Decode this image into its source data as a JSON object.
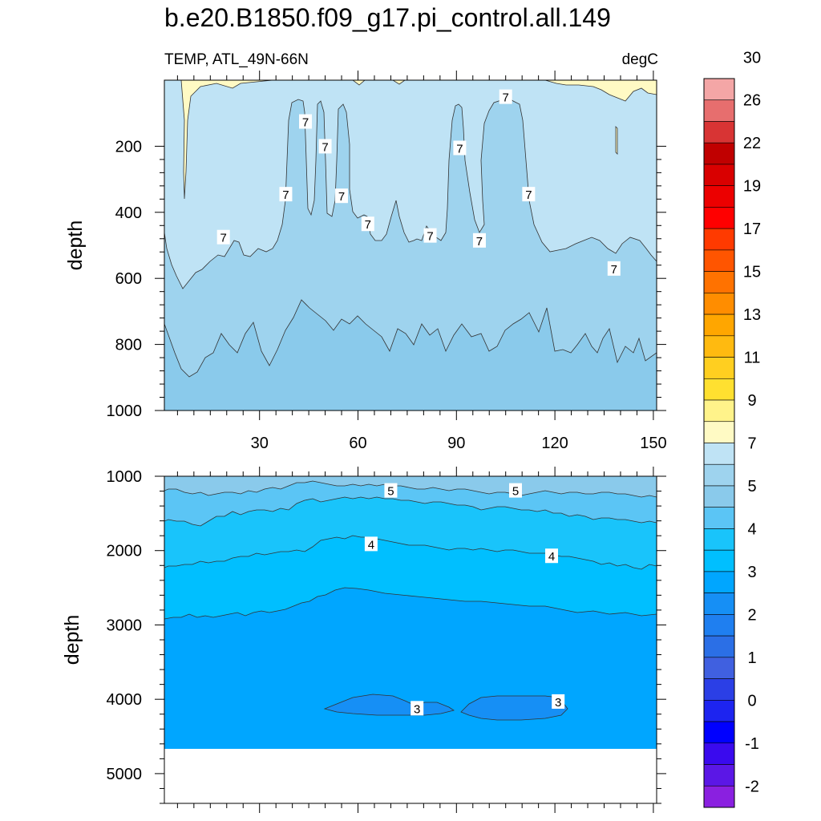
{
  "title": "b.e20.B1850.f09_g17.pi_control.all.149",
  "subtitle_left": "TEMP, ATL_49N-66N",
  "subtitle_right": "degC",
  "chart_data": [
    {
      "type": "contour",
      "name": "upper-panel",
      "xlabel": "",
      "ylabel": "depth",
      "xlim": [
        1,
        151
      ],
      "ylim": [
        1000,
        0
      ],
      "xticks": [
        30,
        60,
        90,
        120,
        150
      ],
      "yticks": [
        200,
        400,
        600,
        800,
        1000
      ],
      "contour_labels": [
        {
          "text": "7",
          "x": 44,
          "y": 125
        },
        {
          "text": "7",
          "x": 50,
          "y": 200
        },
        {
          "text": "7",
          "x": 38,
          "y": 345
        },
        {
          "text": "7",
          "x": 55,
          "y": 350
        },
        {
          "text": "7",
          "x": 63,
          "y": 435
        },
        {
          "text": "7",
          "x": 19,
          "y": 475
        },
        {
          "text": "7",
          "x": 82,
          "y": 470
        },
        {
          "text": "7",
          "x": 97,
          "y": 485
        },
        {
          "text": "7",
          "x": 91,
          "y": 205
        },
        {
          "text": "7",
          "x": 105,
          "y": 50
        },
        {
          "text": "7",
          "x": 112,
          "y": 345
        },
        {
          "text": "7",
          "x": 138,
          "y": 570
        }
      ]
    },
    {
      "type": "contour",
      "name": "lower-panel",
      "xlabel": "",
      "ylabel": "depth",
      "xlim": [
        1,
        151
      ],
      "ylim": [
        5400,
        1000
      ],
      "yticks": [
        1000,
        2000,
        3000,
        4000,
        5000
      ],
      "bottom_depth": 4600,
      "contour_labels": [
        {
          "text": "5",
          "x": 70,
          "y": 1190
        },
        {
          "text": "5",
          "x": 108,
          "y": 1190
        },
        {
          "text": "4",
          "x": 64,
          "y": 1910
        },
        {
          "text": "4",
          "x": 119,
          "y": 2070
        },
        {
          "text": "3",
          "x": 78,
          "y": 4120
        },
        {
          "text": "3",
          "x": 121,
          "y": 4030
        }
      ]
    }
  ],
  "colorbar": {
    "labels": [
      "-2",
      "-1",
      "0",
      "1",
      "2",
      "3",
      "4",
      "5",
      "7",
      "9",
      "11",
      "13",
      "15",
      "17",
      "19",
      "22",
      "26",
      "30"
    ],
    "colors": [
      "#f4a6a6",
      "#e76e6e",
      "#d83434",
      "#c00000",
      "#d90000",
      "#ec0000",
      "#ff0000",
      "#ff3a00",
      "#ff5500",
      "#ff7200",
      "#ff8d00",
      "#ffa600",
      "#ffba10",
      "#ffcf20",
      "#ffe030",
      "#fff38a",
      "#fffac4",
      "#bfe3f5",
      "#9ed3ee",
      "#8acaeb",
      "#5bc5f5",
      "#19c4fb",
      "#00bfff",
      "#00a6ff",
      "#168ff5",
      "#1f7ff0",
      "#2b6fe6",
      "#4060e0",
      "#2b3fe6",
      "#1d24f0",
      "#0000ff",
      "#3a0aee",
      "#5b17e6",
      "#8a20e0"
    ]
  }
}
